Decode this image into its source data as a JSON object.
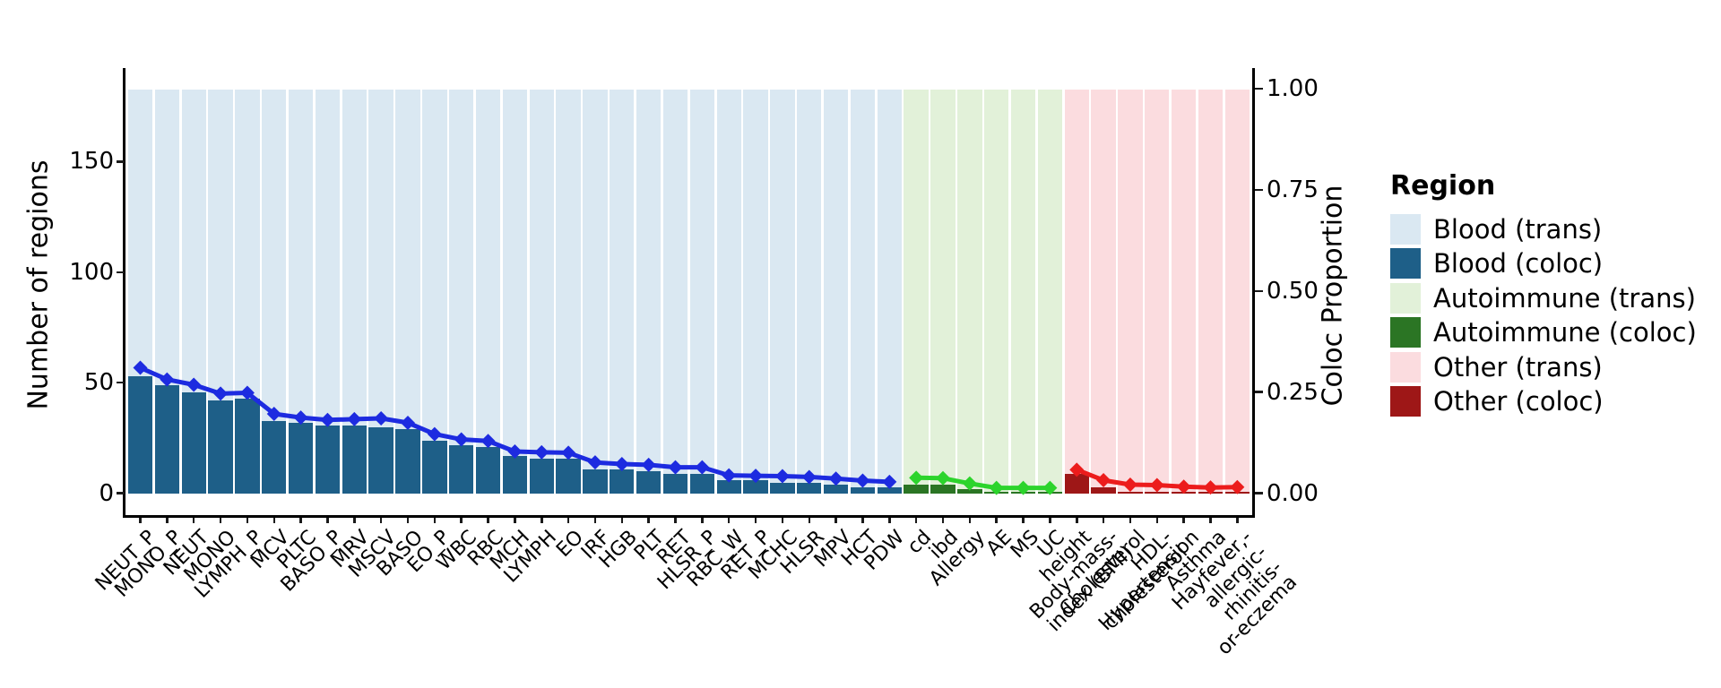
{
  "legend": {
    "title": "Region",
    "entries": [
      {
        "label": "Blood (trans)",
        "color": "#dae8f2"
      },
      {
        "label": "Blood (coloc)",
        "color": "#1e5f88"
      },
      {
        "label": "Autoimmune (trans)",
        "color": "#e2f1d9"
      },
      {
        "label": "Autoimmune (coloc)",
        "color": "#2b7524"
      },
      {
        "label": "Other (trans)",
        "color": "#fbdcdf"
      },
      {
        "label": "Other (coloc)",
        "color": "#9e1717"
      }
    ]
  },
  "chart_data": {
    "type": "bar",
    "subtype": "dual-axis bars with overlaid diamond-marker lines, one line per region group",
    "title": "",
    "left_axis": {
      "label": "Number of regions",
      "tick_labels": [
        "0",
        "50",
        "100",
        "150"
      ],
      "tick_values": [
        0,
        50,
        100,
        150
      ],
      "ylim": [
        0,
        192
      ]
    },
    "right_axis": {
      "label": "Coloc Proportion",
      "tick_labels": [
        "0.00",
        "0.25",
        "0.50",
        "0.75",
        "1.00"
      ],
      "tick_values": [
        0,
        0.25,
        0.5,
        0.75,
        1.0
      ],
      "ylim": [
        0,
        1
      ]
    },
    "grid": "off",
    "legend_position": "right",
    "trans_bar_proportion": 1.0,
    "groups": {
      "blood": {
        "trans": "#dae8f2",
        "coloc": "#1e5f88",
        "line": "#1d2be0"
      },
      "autoimmune": {
        "trans": "#e2f1d9",
        "coloc": "#2b7524",
        "line": "#2cd42c"
      },
      "other": {
        "trans": "#fbdcdf",
        "coloc": "#9e1717",
        "line": "#ec1c1c"
      }
    },
    "traits": [
      {
        "label": "NEUT_P",
        "group": "blood",
        "regions": 53,
        "coloc_proportion": 0.31
      },
      {
        "label": "MONO_P",
        "group": "blood",
        "regions": 49,
        "coloc_proportion": 0.281
      },
      {
        "label": "NEUT",
        "group": "blood",
        "regions": 46,
        "coloc_proportion": 0.268
      },
      {
        "label": "MONO",
        "group": "blood",
        "regions": 42,
        "coloc_proportion": 0.246
      },
      {
        "label": "LYMPH_P",
        "group": "blood",
        "regions": 43,
        "coloc_proportion": 0.248
      },
      {
        "label": "MCV",
        "group": "blood",
        "regions": 33,
        "coloc_proportion": 0.196
      },
      {
        "label": "PLTC",
        "group": "blood",
        "regions": 32,
        "coloc_proportion": 0.187
      },
      {
        "label": "BASO_P",
        "group": "blood",
        "regions": 31,
        "coloc_proportion": 0.181
      },
      {
        "label": "MRV",
        "group": "blood",
        "regions": 31,
        "coloc_proportion": 0.183
      },
      {
        "label": "MSCV",
        "group": "blood",
        "regions": 30,
        "coloc_proportion": 0.185
      },
      {
        "label": "BASO",
        "group": "blood",
        "regions": 29,
        "coloc_proportion": 0.174
      },
      {
        "label": "EO_P",
        "group": "blood",
        "regions": 24,
        "coloc_proportion": 0.146
      },
      {
        "label": "WBC",
        "group": "blood",
        "regions": 22,
        "coloc_proportion": 0.133
      },
      {
        "label": "RBC",
        "group": "blood",
        "regions": 21,
        "coloc_proportion": 0.129
      },
      {
        "label": "MCH",
        "group": "blood",
        "regions": 17,
        "coloc_proportion": 0.103
      },
      {
        "label": "LYMPH",
        "group": "blood",
        "regions": 16,
        "coloc_proportion": 0.101
      },
      {
        "label": "EO",
        "group": "blood",
        "regions": 16,
        "coloc_proportion": 0.1
      },
      {
        "label": "IRF",
        "group": "blood",
        "regions": 11,
        "coloc_proportion": 0.076
      },
      {
        "label": "HGB",
        "group": "blood",
        "regions": 11,
        "coloc_proportion": 0.072
      },
      {
        "label": "PLT",
        "group": "blood",
        "regions": 10,
        "coloc_proportion": 0.07
      },
      {
        "label": "RET",
        "group": "blood",
        "regions": 9,
        "coloc_proportion": 0.064
      },
      {
        "label": "HLSR_P",
        "group": "blood",
        "regions": 9,
        "coloc_proportion": 0.064
      },
      {
        "label": "RBC_W",
        "group": "blood",
        "regions": 6,
        "coloc_proportion": 0.044
      },
      {
        "label": "RET_P",
        "group": "blood",
        "regions": 6,
        "coloc_proportion": 0.043
      },
      {
        "label": "MCHC",
        "group": "blood",
        "regions": 5,
        "coloc_proportion": 0.042
      },
      {
        "label": "HLSR",
        "group": "blood",
        "regions": 5,
        "coloc_proportion": 0.04
      },
      {
        "label": "MPV",
        "group": "blood",
        "regions": 4,
        "coloc_proportion": 0.036
      },
      {
        "label": "HCT",
        "group": "blood",
        "regions": 3,
        "coloc_proportion": 0.031
      },
      {
        "label": "PDW",
        "group": "blood",
        "regions": 3,
        "coloc_proportion": 0.028
      },
      {
        "label": "cd",
        "group": "autoimmune",
        "regions": 4,
        "coloc_proportion": 0.038
      },
      {
        "label": "ibd",
        "group": "autoimmune",
        "regions": 4,
        "coloc_proportion": 0.037
      },
      {
        "label": "Allergy",
        "group": "autoimmune",
        "regions": 2,
        "coloc_proportion": 0.024
      },
      {
        "label": "AE",
        "group": "autoimmune",
        "regions": 1,
        "coloc_proportion": 0.013
      },
      {
        "label": "MS",
        "group": "autoimmune",
        "regions": 1,
        "coloc_proportion": 0.013
      },
      {
        "label": "UC",
        "group": "autoimmune",
        "regions": 1,
        "coloc_proportion": 0.013
      },
      {
        "label": "height",
        "group": "other",
        "regions": 9,
        "coloc_proportion": 0.058
      },
      {
        "label": "Body-mass-index (BMI)",
        "display": "Body-mass-\nindex (BMI)",
        "group": "other",
        "regions": 3,
        "coloc_proportion": 0.032
      },
      {
        "label": "Cholesterol",
        "group": "other",
        "regions": 1,
        "coloc_proportion": 0.021
      },
      {
        "label": "HDL-cholesterol",
        "display": "HDL-\ncholesterol",
        "group": "other",
        "regions": 1,
        "coloc_proportion": 0.02
      },
      {
        "label": "Hypertension",
        "group": "other",
        "regions": 1,
        "coloc_proportion": 0.016
      },
      {
        "label": "Asthma",
        "group": "other",
        "regions": 1,
        "coloc_proportion": 0.014
      },
      {
        "label": "Hayfever,-allergic-rhinitis-or-eczema",
        "display": "Hayfever,-\nallergic-\nrhinitis-\nor-eczema",
        "group": "other",
        "regions": 1,
        "coloc_proportion": 0.015
      }
    ]
  }
}
